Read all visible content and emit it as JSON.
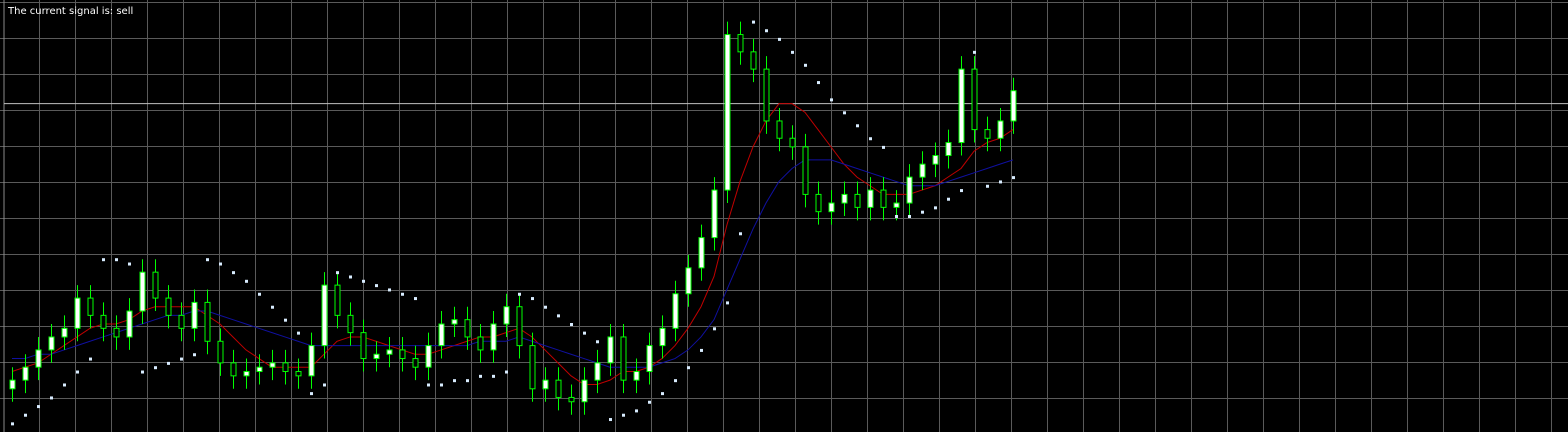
{
  "chart_data": {
    "type": "candlestick",
    "title": "The current signal is: sell",
    "ylim": [
      0,
      100
    ],
    "up_color": "#ffffff",
    "down_color": "#000000",
    "wick_color": "#00ff00",
    "bid_line": 76,
    "bid_line_color": "#c0c0c0",
    "open": [
      10,
      12,
      15,
      19,
      22,
      24,
      31,
      27,
      24,
      22,
      28,
      37,
      31,
      27,
      24,
      30,
      21,
      16,
      13,
      14,
      15,
      16,
      14,
      13,
      20,
      34,
      27,
      23,
      17,
      18,
      19,
      17,
      15,
      20,
      25,
      26,
      22,
      19,
      25,
      29,
      20,
      10,
      12,
      8,
      7,
      12,
      16,
      22,
      12,
      14,
      20,
      24,
      32,
      38,
      45,
      56,
      92,
      88,
      84,
      72,
      68,
      66,
      55,
      51,
      53,
      55,
      52,
      56,
      52,
      53,
      59,
      62,
      64,
      67,
      84,
      70,
      68,
      72
    ],
    "high": [
      15,
      18,
      22,
      25,
      27,
      34,
      34,
      30,
      27,
      31,
      40,
      40,
      34,
      30,
      33,
      33,
      24,
      19,
      17,
      18,
      19,
      19,
      17,
      23,
      37,
      37,
      30,
      26,
      21,
      22,
      22,
      20,
      23,
      28,
      29,
      29,
      25,
      28,
      32,
      32,
      23,
      15,
      15,
      11,
      15,
      19,
      25,
      25,
      17,
      23,
      27,
      35,
      41,
      48,
      59,
      95,
      95,
      91,
      87,
      75,
      71,
      69,
      58,
      56,
      58,
      58,
      59,
      59,
      56,
      62,
      65,
      67,
      70,
      87,
      87,
      73,
      75,
      82
    ],
    "low": [
      7,
      9,
      12,
      16,
      19,
      21,
      24,
      21,
      19,
      19,
      25,
      28,
      24,
      21,
      21,
      18,
      13,
      10,
      10,
      11,
      12,
      11,
      10,
      10,
      17,
      24,
      20,
      14,
      14,
      15,
      14,
      12,
      12,
      17,
      22,
      19,
      16,
      16,
      22,
      17,
      7,
      7,
      5,
      4,
      4,
      9,
      13,
      9,
      9,
      11,
      17,
      21,
      29,
      35,
      42,
      53,
      85,
      81,
      69,
      65,
      63,
      52,
      48,
      48,
      50,
      49,
      49,
      49,
      49,
      50,
      56,
      59,
      61,
      64,
      67,
      65,
      65,
      69
    ],
    "close": [
      12,
      15,
      19,
      22,
      24,
      31,
      27,
      24,
      22,
      28,
      37,
      31,
      27,
      24,
      30,
      21,
      16,
      13,
      14,
      15,
      16,
      14,
      13,
      20,
      34,
      27,
      23,
      17,
      18,
      19,
      17,
      15,
      20,
      25,
      26,
      22,
      19,
      25,
      29,
      20,
      10,
      12,
      8,
      7,
      12,
      16,
      22,
      12,
      14,
      20,
      24,
      32,
      38,
      45,
      56,
      92,
      88,
      84,
      72,
      68,
      66,
      55,
      51,
      53,
      55,
      52,
      56,
      52,
      53,
      59,
      62,
      64,
      67,
      84,
      70,
      68,
      72,
      79
    ],
    "lines": [
      {
        "color": "#c00000",
        "values": [
          14,
          15,
          16,
          18,
          20,
          22,
          24,
          25,
          25,
          26,
          28,
          29,
          29,
          29,
          29,
          27,
          25,
          22,
          19,
          17,
          15,
          15,
          15,
          15,
          18,
          21,
          22,
          22,
          21,
          20,
          19,
          18,
          18,
          19,
          20,
          21,
          22,
          22,
          23,
          24,
          22,
          19,
          16,
          13,
          11,
          11,
          12,
          14,
          14,
          15,
          17,
          20,
          24,
          29,
          36,
          48,
          58,
          66,
          72,
          76,
          76,
          74,
          70,
          66,
          62,
          59,
          57,
          55,
          55,
          55,
          56,
          57,
          59,
          61,
          65,
          67,
          68,
          70
        ]
      },
      {
        "color": "#1010a0",
        "values": [
          17,
          17,
          18,
          18,
          19,
          20,
          21,
          22,
          23,
          24,
          25,
          26,
          27,
          27,
          28,
          28,
          27,
          26,
          25,
          24,
          23,
          22,
          21,
          20,
          20,
          20,
          20,
          20,
          20,
          20,
          20,
          20,
          20,
          20,
          20,
          20,
          21,
          21,
          21,
          22,
          21,
          20,
          19,
          18,
          17,
          16,
          15,
          15,
          15,
          15,
          16,
          17,
          19,
          22,
          26,
          33,
          40,
          47,
          53,
          58,
          61,
          63,
          63,
          63,
          62,
          61,
          60,
          59,
          58,
          57,
          57,
          57,
          58,
          59,
          60,
          61,
          62,
          63
        ]
      }
    ],
    "sar": {
      "color": "#d8ecff",
      "values": [
        2,
        4,
        6,
        8,
        11,
        14,
        17,
        40,
        40,
        39,
        14,
        15,
        16,
        17,
        18,
        40,
        39,
        37,
        35,
        32,
        29,
        26,
        23,
        9,
        11,
        37,
        36,
        35,
        34,
        33,
        32,
        31,
        11,
        11,
        12,
        12,
        13,
        13,
        14,
        32,
        31,
        29,
        27,
        25,
        23,
        21,
        3,
        4,
        5,
        7,
        9,
        12,
        15,
        19,
        24,
        30,
        46,
        95,
        93,
        91,
        88,
        85,
        81,
        77,
        74,
        71,
        68,
        66,
        50,
        50,
        51,
        52,
        54,
        56,
        88,
        57,
        58,
        59
      ]
    }
  }
}
